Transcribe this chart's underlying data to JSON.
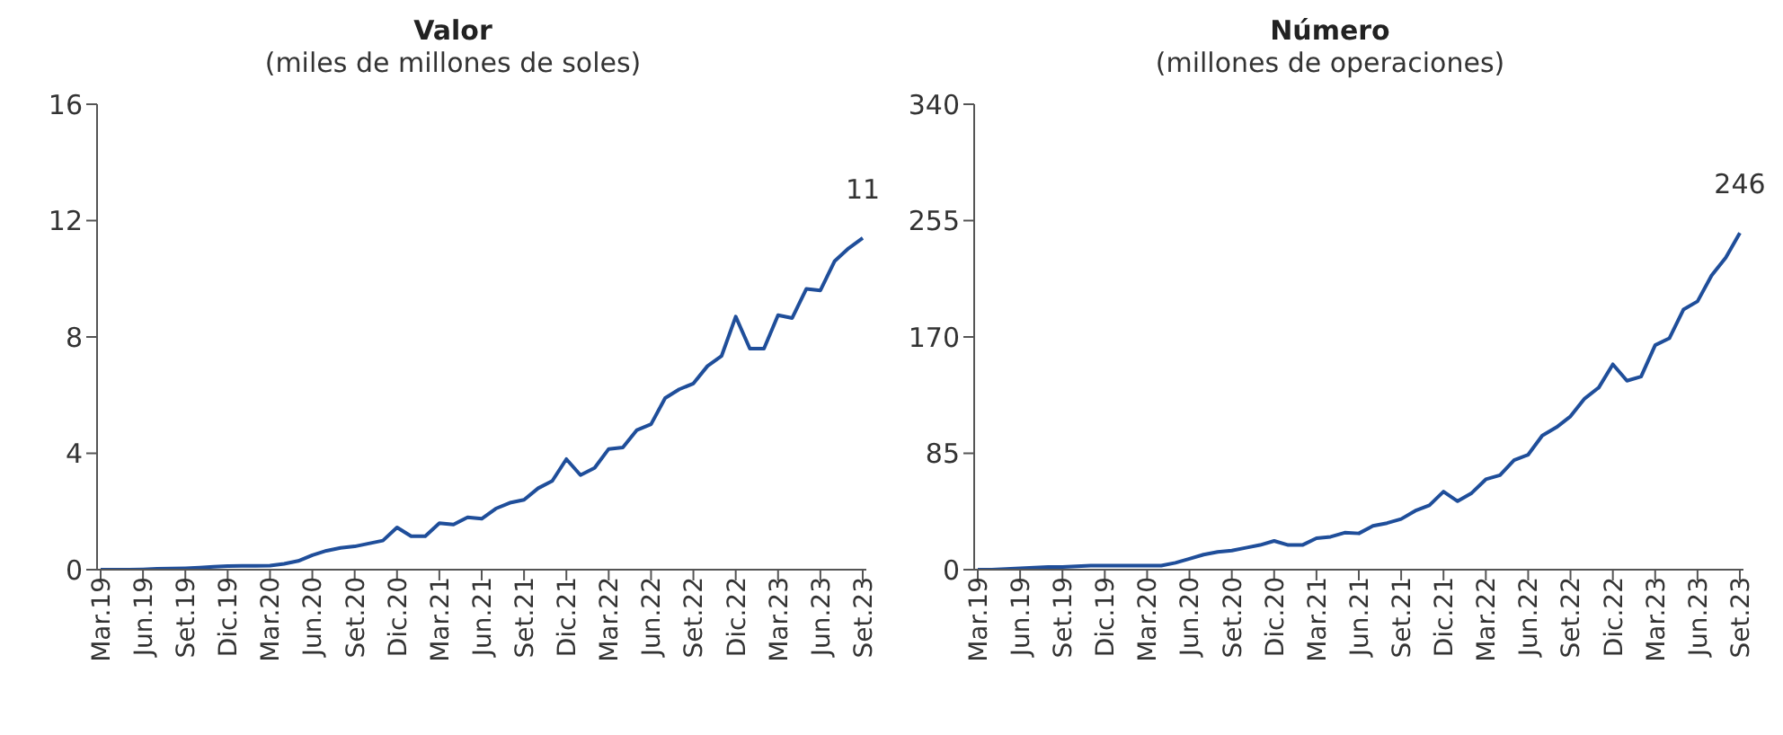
{
  "chart_data": [
    {
      "type": "line",
      "title": "Valor",
      "subtitle": "(miles de millones de soles)",
      "categories": [
        "Mar.19",
        null,
        null,
        "Jun.19",
        null,
        null,
        "Set.19",
        null,
        null,
        "Dic.19",
        null,
        null,
        "Mar.20",
        null,
        null,
        "Jun.20",
        null,
        null,
        "Set.20",
        null,
        null,
        "Dic.20",
        null,
        null,
        "Mar.21",
        null,
        null,
        "Jun.21",
        null,
        null,
        "Set.21",
        null,
        null,
        "Dic.21",
        null,
        null,
        "Mar.22",
        null,
        null,
        "Jun.22",
        null,
        null,
        "Set.22",
        null,
        null,
        "Dic.22",
        null,
        null,
        "Mar.23",
        null,
        null,
        "Jun.23",
        null,
        null,
        "Set.23"
      ],
      "series": [
        {
          "color": "#1f4e9a",
          "values": [
            0,
            0,
            0,
            0.01,
            0.03,
            0.04,
            0.05,
            0.07,
            0.1,
            0.12,
            0.13,
            0.13,
            0.14,
            0.2,
            0.3,
            0.5,
            0.65,
            0.75,
            0.8,
            0.9,
            1.0,
            1.45,
            1.15,
            1.15,
            1.6,
            1.55,
            1.8,
            1.75,
            2.1,
            2.3,
            2.4,
            2.8,
            3.05,
            3.8,
            3.25,
            3.5,
            4.15,
            4.2,
            4.8,
            5.0,
            5.9,
            6.2,
            6.4,
            7.0,
            7.35,
            8.7,
            7.6,
            7.6,
            8.75,
            8.65,
            9.65,
            9.6,
            10.6,
            11.05,
            11.4
          ],
          "value_labels": [
            null,
            null,
            null,
            null,
            null,
            null,
            null,
            null,
            null,
            null,
            null,
            null,
            null,
            null,
            null,
            null,
            null,
            null,
            null,
            null,
            null,
            null,
            null,
            null,
            null,
            null,
            null,
            null,
            null,
            null,
            null,
            null,
            null,
            null,
            null,
            null,
            null,
            null,
            null,
            null,
            null,
            null,
            null,
            null,
            null,
            null,
            null,
            null,
            null,
            null,
            null,
            null,
            null,
            null,
            "11"
          ]
        }
      ],
      "ylim": [
        0,
        16
      ],
      "yticks": [
        0,
        4,
        8,
        12,
        16
      ],
      "grid": false,
      "legend": false,
      "marker": "none"
    },
    {
      "type": "line",
      "title": "Número",
      "subtitle": "(millones de operaciones)",
      "categories": [
        "Mar.19",
        null,
        null,
        "Jun.19",
        null,
        null,
        "Set.19",
        null,
        null,
        "Dic.19",
        null,
        null,
        "Mar.20",
        null,
        null,
        "Jun.20",
        null,
        null,
        "Set.20",
        null,
        null,
        "Dic.20",
        null,
        null,
        "Mar.21",
        null,
        null,
        "Jun.21",
        null,
        null,
        "Set.21",
        null,
        null,
        "Dic.21",
        null,
        null,
        "Mar.22",
        null,
        null,
        "Jun.22",
        null,
        null,
        "Set.22",
        null,
        null,
        "Dic.22",
        null,
        null,
        "Mar.23",
        null,
        null,
        "Jun.23",
        null,
        null,
        "Set.23"
      ],
      "series": [
        {
          "color": "#1f4e9a",
          "values": [
            0,
            0,
            0.5,
            1,
            1.5,
            2,
            2,
            2.5,
            3,
            3,
            3,
            3,
            3,
            3,
            5,
            8,
            11,
            13,
            14,
            16,
            18,
            21,
            18,
            18,
            23,
            24,
            27,
            26.5,
            32,
            34,
            37,
            43,
            47,
            57,
            50,
            56,
            66,
            69,
            80,
            84,
            98,
            104,
            112,
            125,
            133,
            150,
            138,
            141,
            164,
            169,
            190,
            196,
            215,
            228,
            246
          ],
          "value_labels": [
            null,
            null,
            null,
            null,
            null,
            null,
            null,
            null,
            null,
            null,
            null,
            null,
            null,
            null,
            null,
            null,
            null,
            null,
            null,
            null,
            null,
            null,
            null,
            null,
            null,
            null,
            null,
            null,
            null,
            null,
            null,
            null,
            null,
            null,
            null,
            null,
            null,
            null,
            null,
            null,
            null,
            null,
            null,
            null,
            null,
            null,
            null,
            null,
            null,
            null,
            null,
            null,
            null,
            null,
            "246"
          ]
        }
      ],
      "ylim": [
        0,
        340
      ],
      "yticks": [
        0,
        85,
        170,
        255,
        340
      ],
      "grid": false,
      "legend": false,
      "marker": "none"
    }
  ]
}
